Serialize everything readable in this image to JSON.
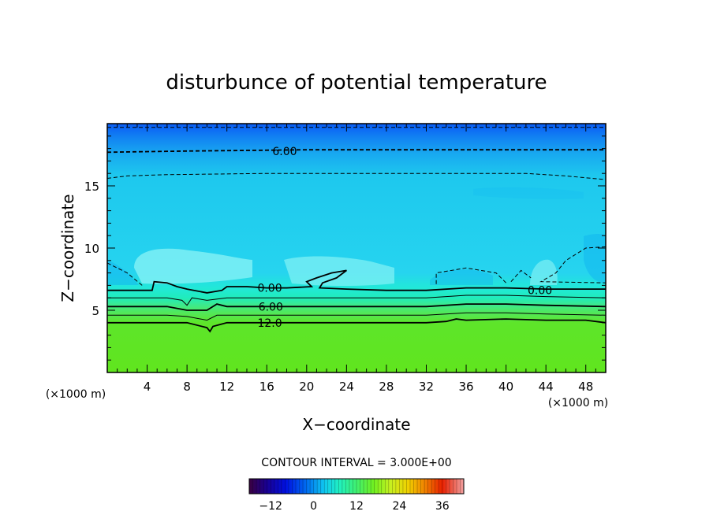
{
  "chart_data": {
    "type": "contour",
    "title": "disturbunce of potential temperature",
    "xlabel": "X−coordinate",
    "ylabel": "Z−coordinate",
    "x_unit": "(×1000 m)",
    "y_unit": "(×1000 m)",
    "xlim": [
      0,
      50
    ],
    "ylim": [
      0,
      20
    ],
    "x_ticks": [
      4,
      8,
      12,
      16,
      20,
      24,
      28,
      32,
      36,
      40,
      44,
      48
    ],
    "x_tick_labels": [
      "4",
      "8",
      "12",
      "16",
      "20",
      "24",
      "28",
      "32",
      "36",
      "40",
      "44",
      "48"
    ],
    "y_ticks": [
      5,
      10,
      15
    ],
    "y_tick_labels": [
      "5",
      "10",
      "15"
    ],
    "contour_interval_text": "CONTOUR INTERVAL = 3.000E+00",
    "contour_labels": [
      {
        "text": "6.00",
        "x": 17.8,
        "z": 17.8
      },
      {
        "text": "0.00",
        "x": 16.3,
        "z": 6.8
      },
      {
        "text": "0.00",
        "x": 43.4,
        "z": 6.6
      },
      {
        "text": "6.00",
        "x": 16.4,
        "z": 5.3
      },
      {
        "text": "12.0",
        "x": 16.3,
        "z": 4.0
      }
    ],
    "contours": [
      {
        "level": 9,
        "dashed": true,
        "points": [
          [
            0,
            19.7
          ],
          [
            50,
            19.7
          ]
        ]
      },
      {
        "level": 6,
        "dashed": true,
        "points": [
          [
            0,
            17.7
          ],
          [
            8,
            17.8
          ],
          [
            20,
            17.9
          ],
          [
            34,
            17.9
          ],
          [
            50,
            17.9
          ]
        ]
      },
      {
        "level": 3,
        "dashed": true,
        "points": [
          [
            0,
            15.6
          ],
          [
            2,
            15.8
          ],
          [
            6,
            15.9
          ],
          [
            16,
            16.0
          ],
          [
            30,
            16.0
          ],
          [
            42,
            16.0
          ],
          [
            46,
            15.8
          ],
          [
            50,
            15.5
          ]
        ]
      },
      {
        "level": 3,
        "dashed": true,
        "points": [
          [
            0,
            8.8
          ],
          [
            2,
            8.0
          ],
          [
            3.5,
            7.0
          ]
        ]
      },
      {
        "level": 3,
        "dashed": true,
        "points": [
          [
            50,
            10.1
          ],
          [
            48,
            10.0
          ],
          [
            46,
            9.0
          ],
          [
            45,
            8.0
          ],
          [
            43.5,
            7.3
          ],
          [
            50,
            7.2
          ]
        ]
      },
      {
        "level": 3,
        "dashed": true,
        "points": [
          [
            33,
            7.1
          ],
          [
            33,
            8.0
          ],
          [
            36,
            8.4
          ],
          [
            39,
            8.0
          ],
          [
            40,
            7.2
          ]
        ]
      },
      {
        "level": 3,
        "dashed": true,
        "points": [
          [
            40.5,
            7.3
          ],
          [
            41.5,
            8.2
          ],
          [
            42.5,
            7.6
          ]
        ]
      },
      {
        "level": 0,
        "dashed": false,
        "points": [
          [
            0,
            6.6
          ],
          [
            4.5,
            6.6
          ],
          [
            4.7,
            7.3
          ],
          [
            6,
            7.2
          ],
          [
            7,
            6.9
          ],
          [
            8,
            6.7
          ],
          [
            10,
            6.4
          ],
          [
            11.5,
            6.6
          ],
          [
            12,
            6.9
          ],
          [
            14,
            6.9
          ],
          [
            16,
            6.8
          ],
          [
            18,
            6.8
          ],
          [
            20.5,
            6.9
          ],
          [
            20,
            7.3
          ],
          [
            21,
            7.6
          ],
          [
            22.5,
            8.0
          ],
          [
            24,
            8.2
          ],
          [
            23,
            7.6
          ],
          [
            21.6,
            7.2
          ],
          [
            21.3,
            6.8
          ],
          [
            24,
            6.7
          ],
          [
            28,
            6.6
          ],
          [
            32,
            6.6
          ],
          [
            36,
            6.8
          ],
          [
            40,
            6.8
          ],
          [
            44,
            6.7
          ],
          [
            50,
            6.7
          ]
        ]
      },
      {
        "level": 3,
        "dashed": false,
        "points": [
          [
            0,
            6.0
          ],
          [
            6,
            6.0
          ],
          [
            7.5,
            5.8
          ],
          [
            8,
            5.4
          ],
          [
            8.5,
            6.0
          ],
          [
            10,
            5.8
          ],
          [
            12,
            6.0
          ],
          [
            16,
            6.0
          ],
          [
            24,
            6.0
          ],
          [
            32,
            6.0
          ],
          [
            36,
            6.2
          ],
          [
            40,
            6.2
          ],
          [
            44,
            6.1
          ],
          [
            50,
            6.0
          ]
        ]
      },
      {
        "level": 6,
        "dashed": false,
        "points": [
          [
            0,
            5.3
          ],
          [
            6,
            5.3
          ],
          [
            8,
            5.0
          ],
          [
            10,
            5.0
          ],
          [
            11,
            5.5
          ],
          [
            12,
            5.3
          ],
          [
            16,
            5.3
          ],
          [
            24,
            5.3
          ],
          [
            32,
            5.3
          ],
          [
            36,
            5.5
          ],
          [
            40,
            5.5
          ],
          [
            44,
            5.4
          ],
          [
            50,
            5.3
          ]
        ]
      },
      {
        "level": 9,
        "dashed": false,
        "points": [
          [
            0,
            4.6
          ],
          [
            6,
            4.6
          ],
          [
            8,
            4.5
          ],
          [
            10,
            4.2
          ],
          [
            11,
            4.6
          ],
          [
            16,
            4.6
          ],
          [
            24,
            4.6
          ],
          [
            32,
            4.6
          ],
          [
            36,
            4.8
          ],
          [
            40,
            4.8
          ],
          [
            44,
            4.7
          ],
          [
            50,
            4.6
          ]
        ]
      },
      {
        "level": 12,
        "dashed": false,
        "points": [
          [
            0,
            4.0
          ],
          [
            6,
            4.0
          ],
          [
            8,
            4.0
          ],
          [
            10,
            3.6
          ],
          [
            10.3,
            3.3
          ],
          [
            10.6,
            3.7
          ],
          [
            12,
            4.0
          ],
          [
            16,
            4.0
          ],
          [
            24,
            4.0
          ],
          [
            32,
            4.0
          ],
          [
            34,
            4.1
          ],
          [
            35,
            4.3
          ],
          [
            36,
            4.2
          ],
          [
            40,
            4.3
          ],
          [
            44,
            4.2
          ],
          [
            48,
            4.2
          ],
          [
            50,
            4.0
          ]
        ]
      }
    ],
    "colorbar": {
      "min": -18,
      "max": 42,
      "tick_values": [
        -12,
        0,
        12,
        24,
        36
      ],
      "tick_labels": [
        "−12",
        "0",
        "12",
        "24",
        "36"
      ]
    }
  }
}
